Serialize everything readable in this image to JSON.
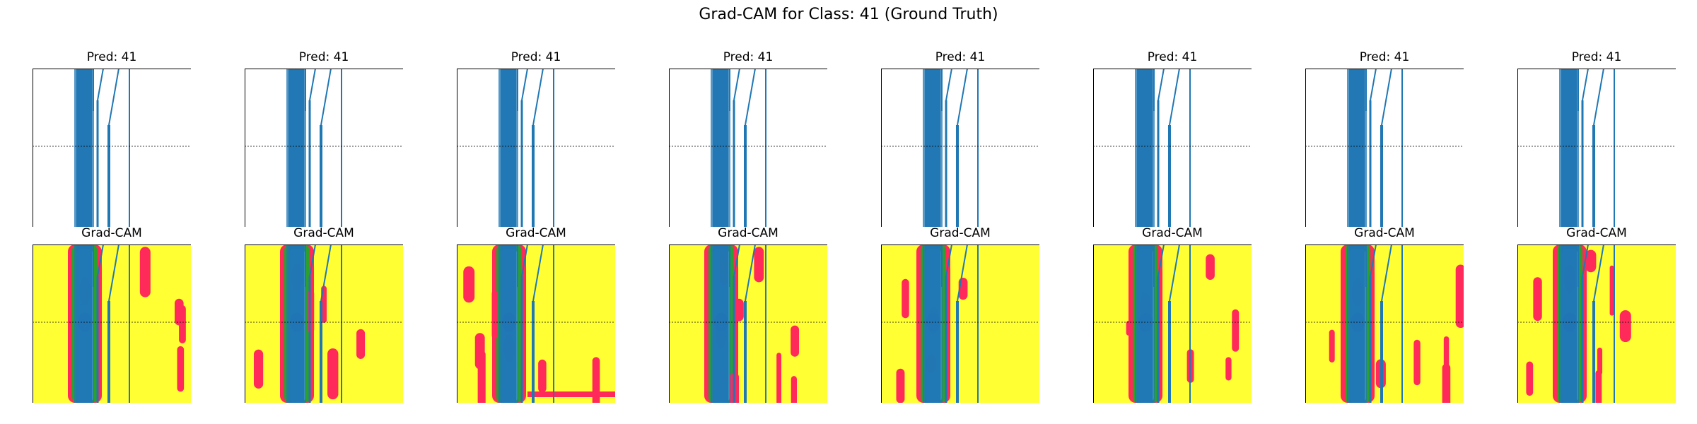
{
  "title": "Grad-CAM for Class: 41 (Ground Truth)",
  "chart_data": {
    "type": "grid of signal plots with Grad-CAM heatmaps",
    "rows": 2,
    "columns": 8,
    "prediction_titles": [
      "Pred: 41",
      "Pred: 41",
      "Pred: 41",
      "Pred: 41",
      "Pred: 41",
      "Pred: 41",
      "Pred: 41",
      "Pred: 41"
    ],
    "gradcam_titles": [
      "Grad-CAM",
      "Grad-CAM",
      "Grad-CAM",
      "Grad-CAM",
      "Grad-CAM",
      "Grad-CAM",
      "Grad-CAM",
      "Grad-CAM"
    ],
    "signal_color": "#1f77b4",
    "heatmap_colors": {
      "background": "#ffff33",
      "hot": "#ff2a5a",
      "mid": "#2ca02c",
      "core": "#7fd6c8",
      "center": "#8c7fd6"
    },
    "dashed_midline": true,
    "axes_visible": false
  }
}
